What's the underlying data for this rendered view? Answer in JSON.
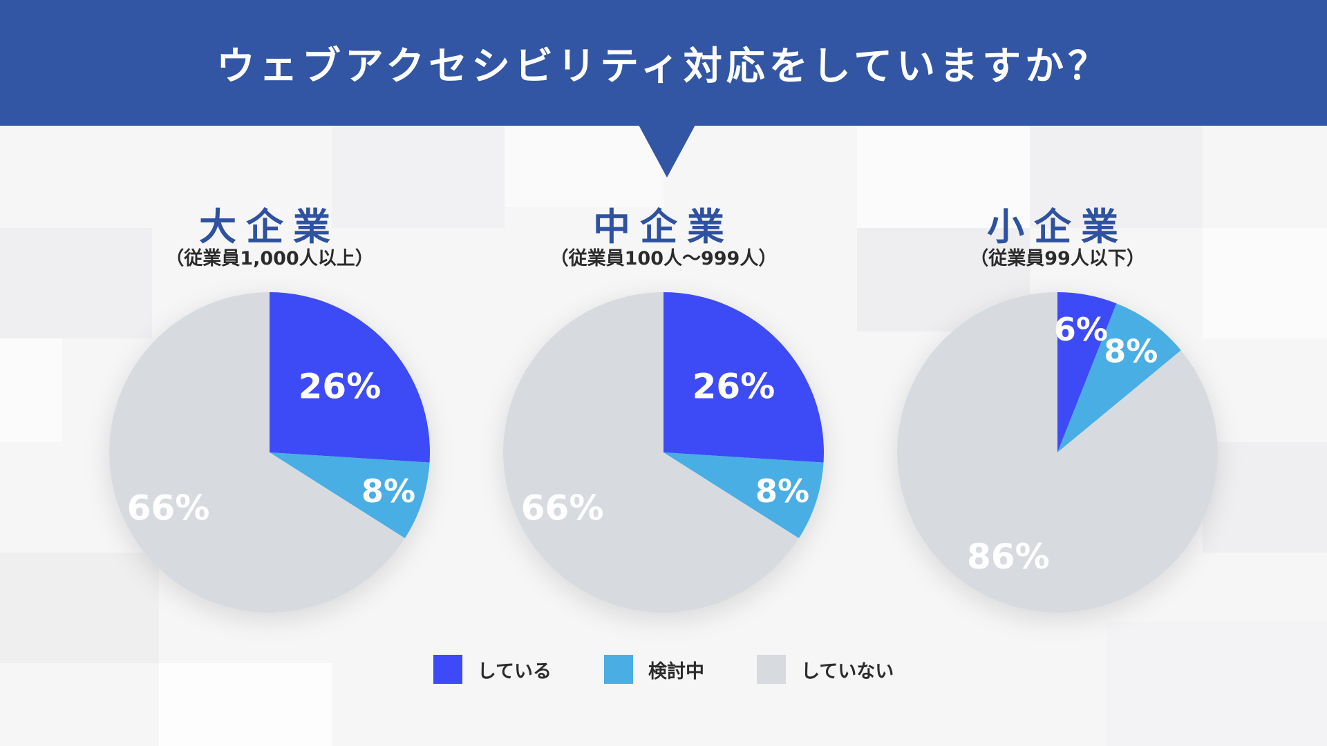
{
  "title": "ウェブアクセシビリティ対応をしていますか？",
  "colors": {
    "header_bg": "#3255a4",
    "doing": "#3c4bf7",
    "considering": "#4aaee4",
    "not_doing": "#d7dbe0",
    "slice_label": "#ffffff",
    "group_title": "#2e52a0"
  },
  "legend": [
    {
      "key": "doing",
      "label": "している"
    },
    {
      "key": "considering",
      "label": "検討中"
    },
    {
      "key": "not_doing",
      "label": "していない"
    }
  ],
  "chart_data": [
    {
      "type": "pie",
      "title": "大企業",
      "subtitle": "（従業員1,000人以上）",
      "categories": [
        "している",
        "検討中",
        "していない"
      ],
      "values": [
        26,
        8,
        66
      ],
      "labels": [
        "26%",
        "8%",
        "66%"
      ]
    },
    {
      "type": "pie",
      "title": "中企業",
      "subtitle": "（従業員100人～999人）",
      "categories": [
        "している",
        "検討中",
        "していない"
      ],
      "values": [
        26,
        8,
        66
      ],
      "labels": [
        "26%",
        "8%",
        "66%"
      ]
    },
    {
      "type": "pie",
      "title": "小企業",
      "subtitle": "（従業員99人以下）",
      "categories": [
        "している",
        "検討中",
        "していない"
      ],
      "values": [
        6,
        8,
        86
      ],
      "labels": [
        "6%",
        "8%",
        "86%"
      ]
    }
  ]
}
